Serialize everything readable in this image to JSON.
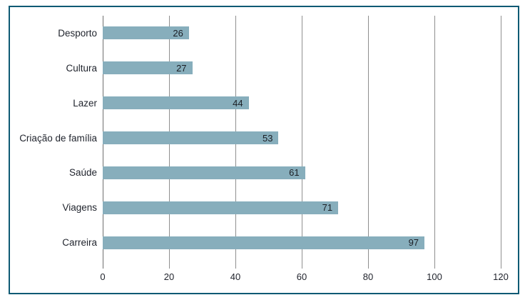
{
  "chart_data": {
    "type": "bar",
    "orientation": "horizontal",
    "title": "",
    "xlabel": "",
    "ylabel": "",
    "categories": [
      "Desporto",
      "Cultura",
      "Lazer",
      "Criação de família",
      "Saúde",
      "Viagens",
      "Carreira"
    ],
    "values": [
      26,
      27,
      44,
      53,
      61,
      71,
      97
    ],
    "xlim": [
      0,
      120
    ],
    "xticks": [
      0,
      20,
      40,
      60,
      80,
      100,
      120
    ],
    "grid": "vertical",
    "legend": "none",
    "value_label_position": "inside-end"
  },
  "colors": {
    "bar_fill": "#87AEBC",
    "frame_border": "#0E5A74",
    "gridline": "#8F8F8F",
    "axis_line": "#6F6F6F",
    "label_text": "#1F232C",
    "background": "#FFFFFF"
  }
}
